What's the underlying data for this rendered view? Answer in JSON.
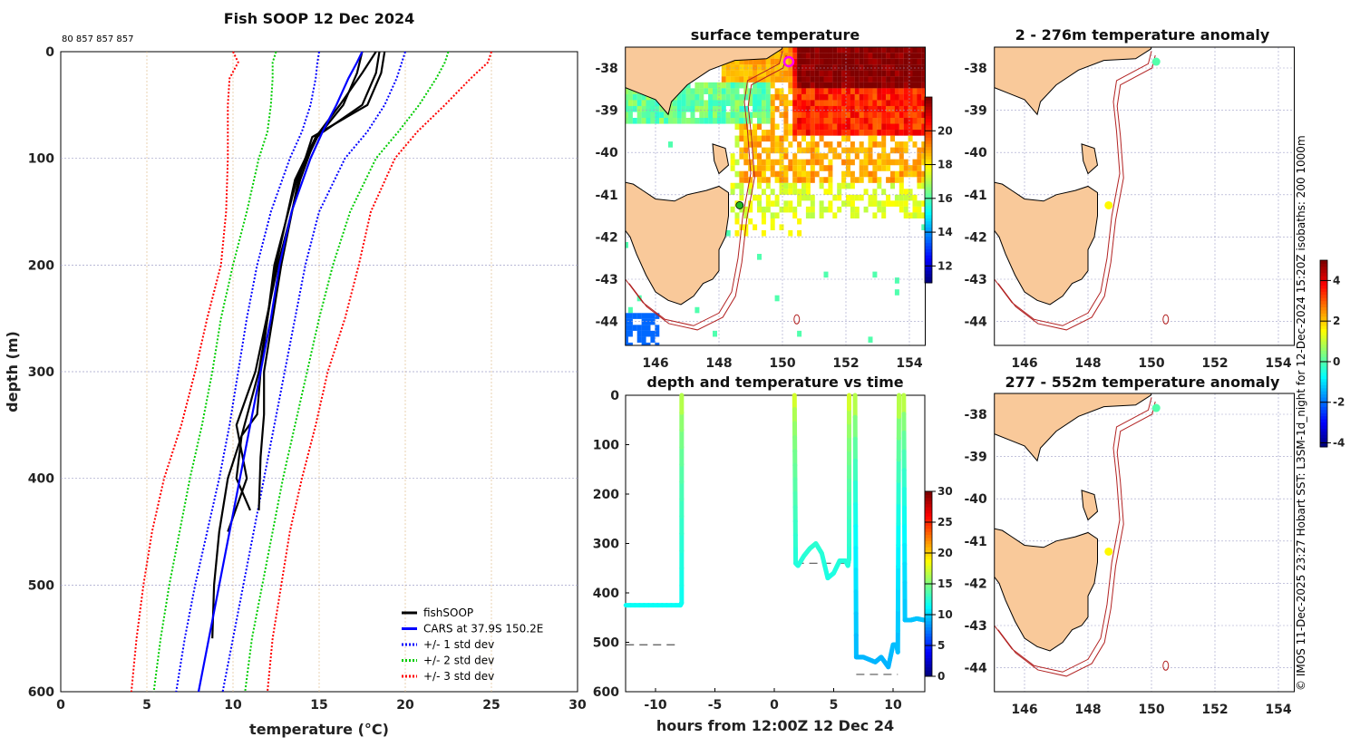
{
  "figure": {
    "main_title": "Fish SOOP 12 Dec 2024",
    "id_text": "80 857 857 857",
    "credit": "© IMOS 11-Dec-2025 23:27 Hobart SST: L3SM-1d_night for 12-Dec-2024 15:20Z isobaths: 200  1000m"
  },
  "colors": {
    "fishsoop": "#000000",
    "cars": "#0000ff",
    "sd1": "#0000ff",
    "sd2": "#00cc00",
    "sd3": "#ff0000",
    "land": "#f9c99a",
    "isobath": "#b22222",
    "grid": "#a0a0c8"
  },
  "chart_data": [
    {
      "type": "line",
      "title": "Fish SOOP 12 Dec 2024",
      "xlabel": "temperature (°C)",
      "xlabel_main": "temperature (",
      "xlabel_sup": "o",
      "xlabel_end": "C)",
      "ylabel": "depth (m)",
      "xlim": [
        0,
        30
      ],
      "ylim": [
        600,
        0
      ],
      "xticks": [
        "0",
        "5",
        "10",
        "15",
        "20",
        "25",
        "30"
      ],
      "yticks": [
        "0",
        "100",
        "200",
        "300",
        "400",
        "500",
        "600"
      ],
      "grid": true,
      "legend_position": "bottom-right",
      "legend": [
        "fishSOOP",
        "CARS at 37.9S 150.2E",
        "+/- 1 std dev",
        "+/- 2 std dev",
        "+/- 3 std dev"
      ],
      "depths": [
        0,
        10,
        25,
        50,
        75,
        100,
        150,
        200,
        250,
        300,
        350,
        400,
        450,
        500,
        550,
        600
      ],
      "cars": [
        17.5,
        17.2,
        16.7,
        16,
        15.2,
        14.5,
        13.4,
        12.7,
        12.2,
        11.6,
        11,
        10.4,
        9.8,
        9.2,
        8.6,
        8.0
      ],
      "sd1_minus": [
        15,
        14.9,
        14.8,
        14.5,
        14,
        13.3,
        12.2,
        11.4,
        10.8,
        10.3,
        9.8,
        9.2,
        8.5,
        7.8,
        7.2,
        6.7
      ],
      "sd1_plus": [
        20,
        19.8,
        19.5,
        18.8,
        17.8,
        16.5,
        15,
        14.2,
        13.6,
        13,
        12.4,
        11.8,
        11.2,
        10.6,
        10,
        9.4
      ],
      "sd2_minus": [
        12.5,
        12.3,
        12.3,
        12.2,
        12,
        11.5,
        10.8,
        10,
        9.3,
        8.8,
        8.2,
        7.5,
        6.9,
        6.3,
        5.8,
        5.4
      ],
      "sd2_plus": [
        22.5,
        22.3,
        21.8,
        20.8,
        19.6,
        18.3,
        16.8,
        15.8,
        15,
        14.3,
        13.6,
        12.9,
        12.3,
        11.7,
        11.1,
        10.7
      ],
      "sd3_minus": [
        10,
        10.3,
        9.8,
        9.7,
        9.7,
        9.7,
        9.6,
        9.3,
        8.5,
        7.8,
        7,
        6,
        5.3,
        4.8,
        4.4,
        4.1
      ],
      "sd3_plus": [
        25,
        24.8,
        23.8,
        22.3,
        20.7,
        19.4,
        18,
        17.3,
        16.5,
        15.5,
        14.8,
        14,
        13.3,
        12.8,
        12.3,
        12
      ],
      "fishsoop_profiles": [
        {
          "depth": [
            0,
            20,
            50,
            80,
            120,
            200,
            300,
            360,
            400,
            450,
            500,
            550
          ],
          "temp": [
            18.5,
            18.3,
            17.5,
            14.8,
            13.6,
            12.5,
            11.5,
            10.5,
            9.7,
            9.2,
            8.9,
            8.8
          ]
        },
        {
          "depth": [
            0,
            20,
            50,
            80,
            120,
            200,
            300,
            340,
            380,
            430
          ],
          "temp": [
            18.8,
            18.6,
            17.8,
            14.6,
            13.8,
            12.8,
            11.8,
            11.8,
            11.6,
            11.5
          ]
        },
        {
          "depth": [
            0,
            20,
            50,
            80,
            120,
            200,
            300,
            350,
            400,
            450
          ],
          "temp": [
            18.3,
            17.5,
            16.2,
            14.8,
            13.9,
            12.6,
            11.3,
            10.2,
            10.8,
            9.7
          ]
        },
        {
          "depth": [
            0,
            20,
            50,
            80,
            120,
            200,
            300,
            340,
            360,
            400,
            430
          ],
          "temp": [
            17.5,
            17.2,
            16.4,
            14.9,
            13.7,
            12.4,
            11.6,
            11.4,
            10.5,
            10.2,
            11
          ]
        }
      ]
    },
    {
      "type": "heatmap",
      "title": "surface temperature",
      "xticks": [
        "146",
        "148",
        "150",
        "152",
        "154"
      ],
      "yticks": [
        "-38",
        "-39",
        "-40",
        "-41",
        "-42",
        "-43",
        "-44"
      ],
      "xlim": [
        145.05,
        154.5
      ],
      "ylim": [
        -44.57,
        -37.5
      ],
      "colorbar_ticks": [
        "12",
        "14",
        "16",
        "18",
        "20"
      ],
      "colorbar_range": [
        11,
        22
      ],
      "markers": [
        {
          "lon": 150.2,
          "lat": -37.85,
          "type": "magenta-circle"
        },
        {
          "lon": 148.65,
          "lat": -41.25,
          "type": "green-dot"
        }
      ]
    },
    {
      "type": "heatmap",
      "title": "2 - 276m temperature anomaly",
      "xticks": [
        "146",
        "148",
        "150",
        "152",
        "154"
      ],
      "yticks": [
        "-38",
        "-39",
        "-40",
        "-41",
        "-42",
        "-43",
        "-44"
      ],
      "points": [
        {
          "lon": 150.15,
          "lat": -37.85,
          "anomaly": 0
        },
        {
          "lon": 148.65,
          "lat": -41.25,
          "anomaly": 1.6
        }
      ]
    },
    {
      "type": "heatmap",
      "title": "277 - 552m temperature anomaly",
      "xticks": [
        "146",
        "148",
        "150",
        "152",
        "154"
      ],
      "yticks": [
        "-38",
        "-39",
        "-40",
        "-41",
        "-42",
        "-43",
        "-44"
      ],
      "points": [
        {
          "lon": 150.15,
          "lat": -37.85,
          "anomaly": 0
        },
        {
          "lon": 148.65,
          "lat": -41.25,
          "anomaly": 1.6
        }
      ],
      "colorbar_ticks": [
        "4",
        "2",
        "0",
        "-2",
        "-4"
      ],
      "colorbar_range": [
        -4.2,
        5
      ]
    },
    {
      "type": "scatter",
      "title": "depth and temperature vs time",
      "xlabel": "hours from 12:00Z 12 Dec 24",
      "xlim": [
        -12.5,
        12.7
      ],
      "ylim": [
        600,
        0
      ],
      "xticks": [
        "-10",
        "-5",
        "0",
        "5",
        "10"
      ],
      "yticks": [
        "0",
        "100",
        "200",
        "300",
        "400",
        "500",
        "600"
      ],
      "colorbar_ticks": [
        "30",
        "25",
        "20",
        "15",
        "10",
        "5",
        "0"
      ],
      "colorbar_range": [
        0,
        30
      ],
      "segments": [
        {
          "t": [
            -12.5,
            -7.9,
            -7.8,
            -7.8
          ],
          "depth": [
            425,
            425,
            420,
            0
          ]
        },
        {
          "t": [
            1.7,
            1.8,
            2.0,
            2.5,
            3.0,
            3.5,
            4.0,
            4.5,
            5.0,
            5.5,
            6.0,
            6.2,
            6.3,
            6.3
          ],
          "depth": [
            0,
            340,
            345,
            325,
            310,
            300,
            320,
            370,
            360,
            335,
            335,
            345,
            330,
            0
          ]
        },
        {
          "t": [
            6.8,
            6.9,
            7.5,
            8.5,
            9.0,
            9.6,
            10.0,
            10.3,
            10.4,
            10.5
          ],
          "depth": [
            0,
            530,
            530,
            540,
            530,
            550,
            505,
            505,
            520,
            0
          ]
        },
        {
          "t": [
            10.9,
            11.0,
            11.5,
            12.0,
            12.6
          ],
          "depth": [
            0,
            455,
            455,
            452,
            455
          ]
        }
      ],
      "segment_temps": [
        {
          "surface": 18.5,
          "bottom": 11.5
        },
        {
          "surface": 19.5,
          "bottom": 12
        },
        {
          "surface": 19.5,
          "bottom": 9
        },
        {
          "surface": 19.5,
          "bottom": 9.5
        }
      ],
      "bottom_depths": [
        {
          "t": [
            -12.5,
            -8
          ],
          "depth": 505
        },
        {
          "t": [
            1.8,
            6.3
          ],
          "depth": 340
        },
        {
          "t": [
            6.9,
            10.4
          ],
          "depth": 565
        },
        {
          "t": [
            11,
            12.7
          ],
          "depth": 455
        }
      ]
    }
  ]
}
